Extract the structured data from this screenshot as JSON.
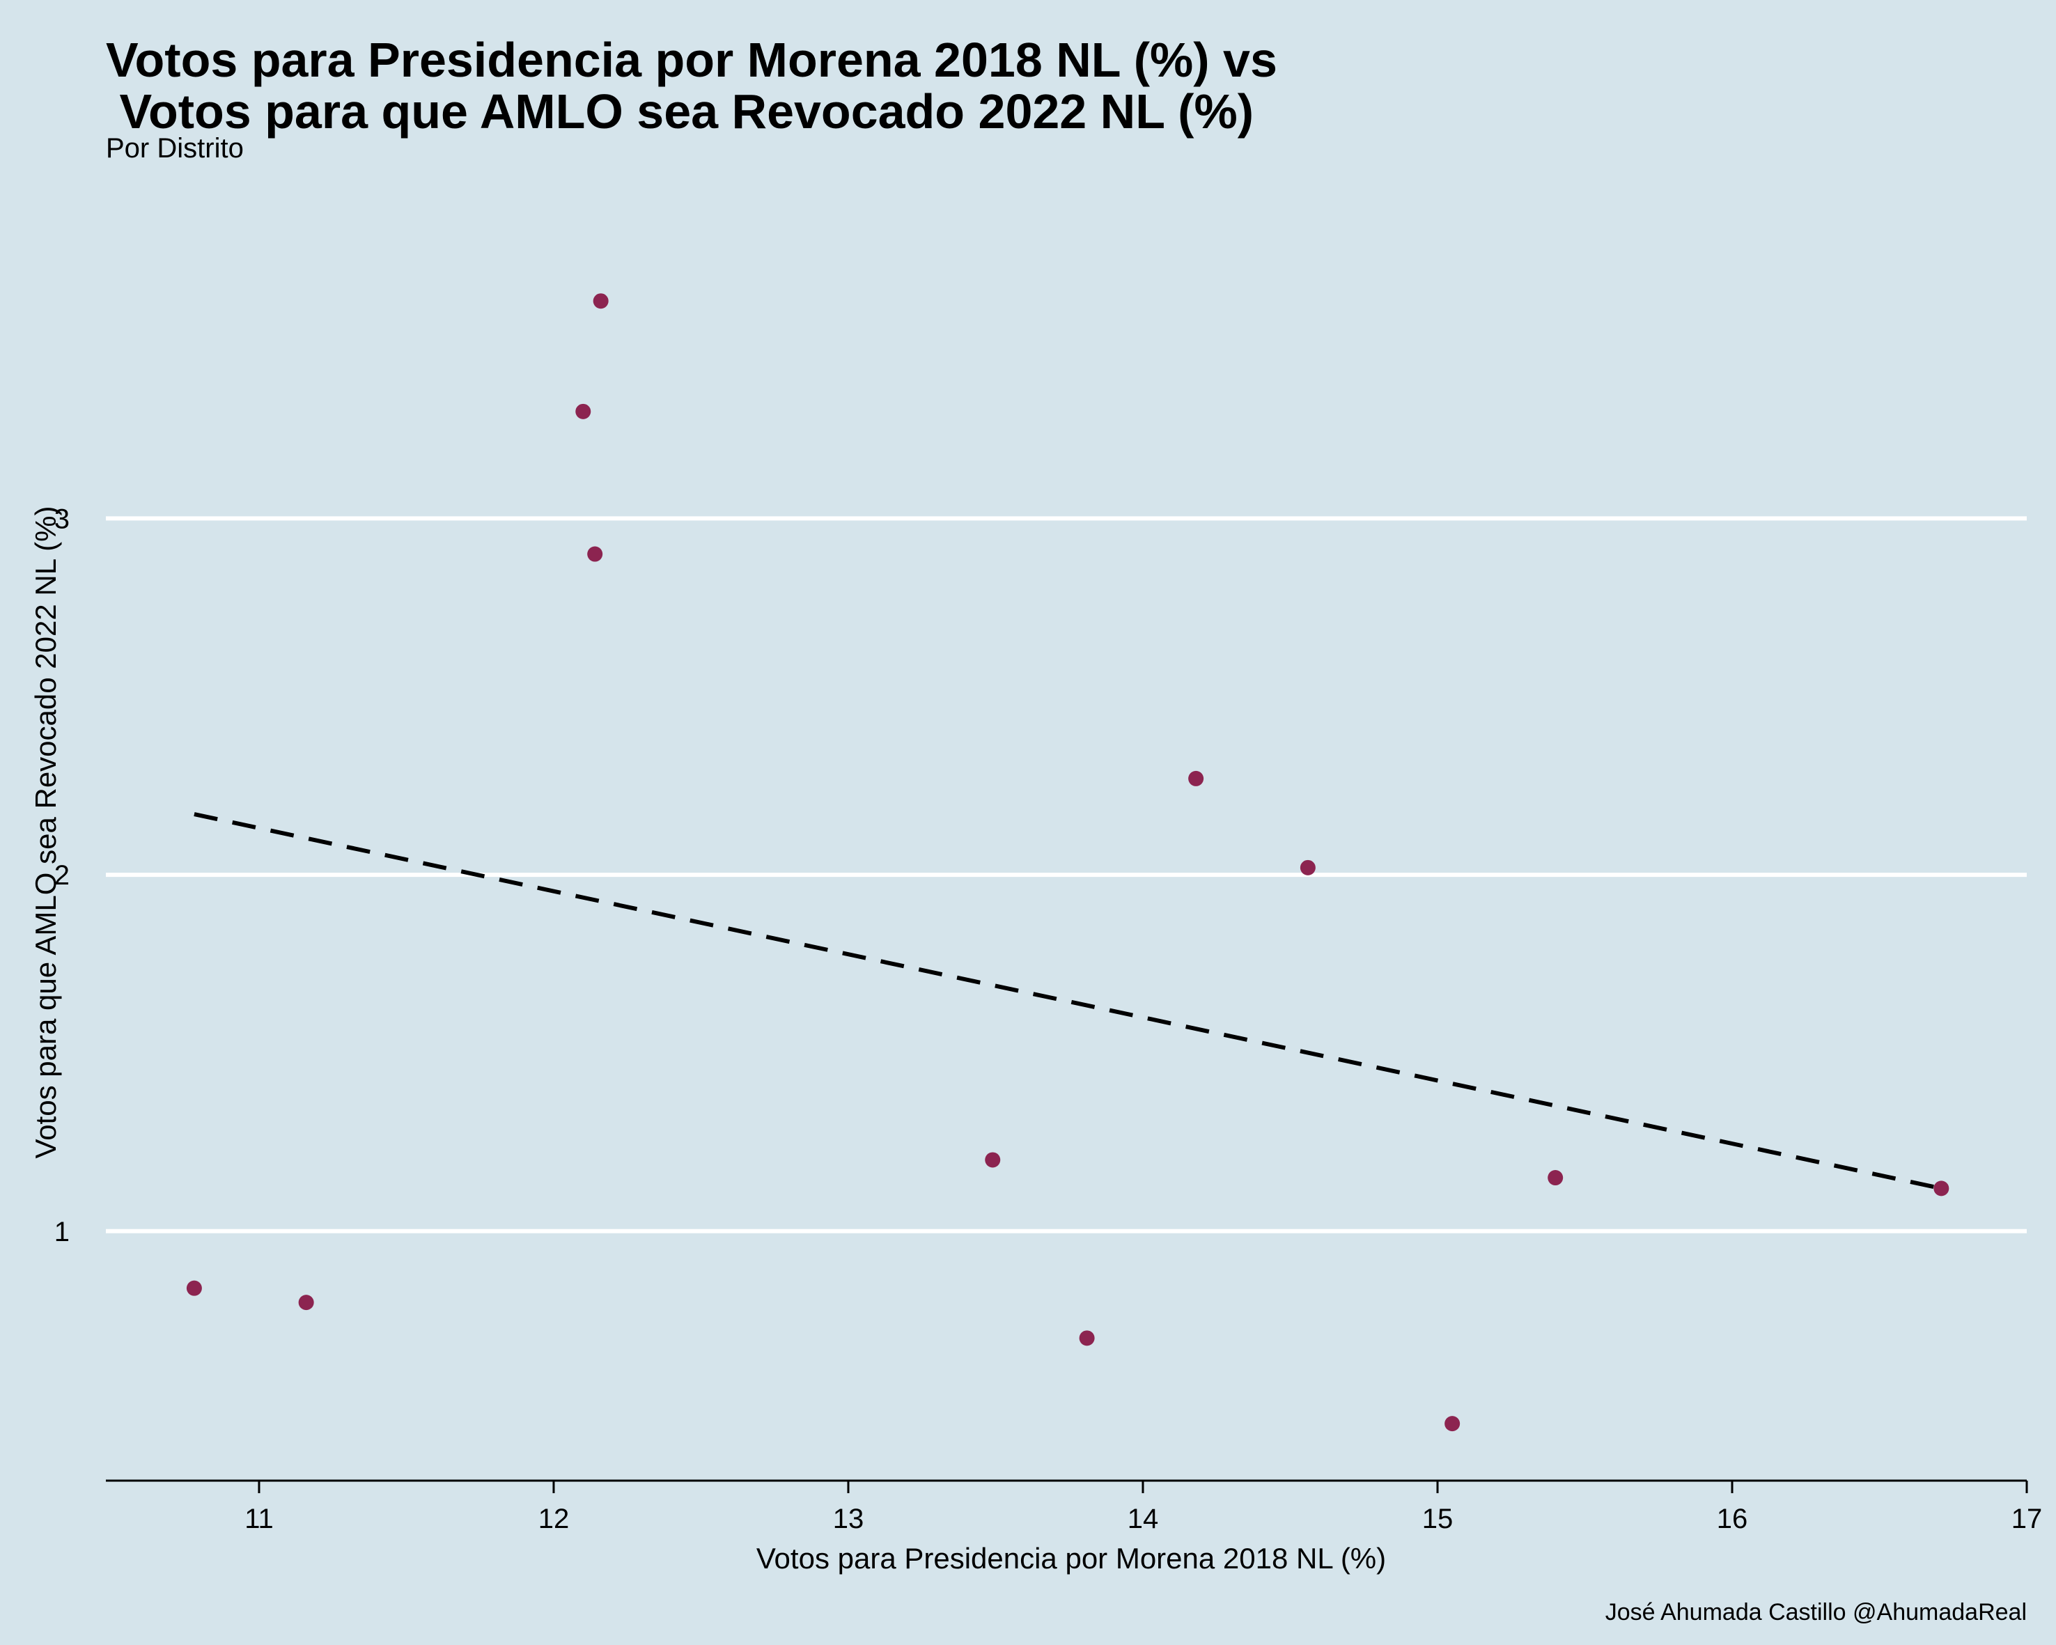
{
  "chart_data": {
    "type": "scatter",
    "title_lines": [
      "Votos para Presidencia por Morena 2018 NL (%) vs",
      " Votos para que AMLO sea Revocado 2022 NL (%)"
    ],
    "subtitle": "Por Distrito",
    "xlabel": "Votos para Presidencia por Morena 2018 NL (%)",
    "ylabel": "Votos para que AMLO sea Revocado 2022 NL (%)",
    "caption": "José Ahumada Castillo @AhumadaReal",
    "xlim": [
      10.48,
      17.0
    ],
    "ylim": [
      0.3,
      3.97
    ],
    "xticks": [
      11,
      12,
      13,
      14,
      15,
      16,
      17
    ],
    "yticks": [
      1,
      2,
      3
    ],
    "grid": "horizontal-major",
    "colors": {
      "background": "#d5e4eb",
      "points": "#8c2450",
      "grid": "#ffffff",
      "trend": "#000000"
    },
    "points": [
      {
        "x": 10.78,
        "y": 0.84
      },
      {
        "x": 11.16,
        "y": 0.8
      },
      {
        "x": 12.1,
        "y": 3.3
      },
      {
        "x": 12.14,
        "y": 2.9
      },
      {
        "x": 12.16,
        "y": 3.61
      },
      {
        "x": 13.49,
        "y": 1.2
      },
      {
        "x": 13.81,
        "y": 0.7
      },
      {
        "x": 14.18,
        "y": 2.27
      },
      {
        "x": 14.56,
        "y": 2.02
      },
      {
        "x": 15.05,
        "y": 0.46
      },
      {
        "x": 15.4,
        "y": 1.15
      },
      {
        "x": 16.71,
        "y": 1.12
      }
    ],
    "trend_line": {
      "style": "dashed",
      "x": [
        10.78,
        16.71
      ],
      "y": [
        2.17,
        1.12
      ]
    }
  }
}
